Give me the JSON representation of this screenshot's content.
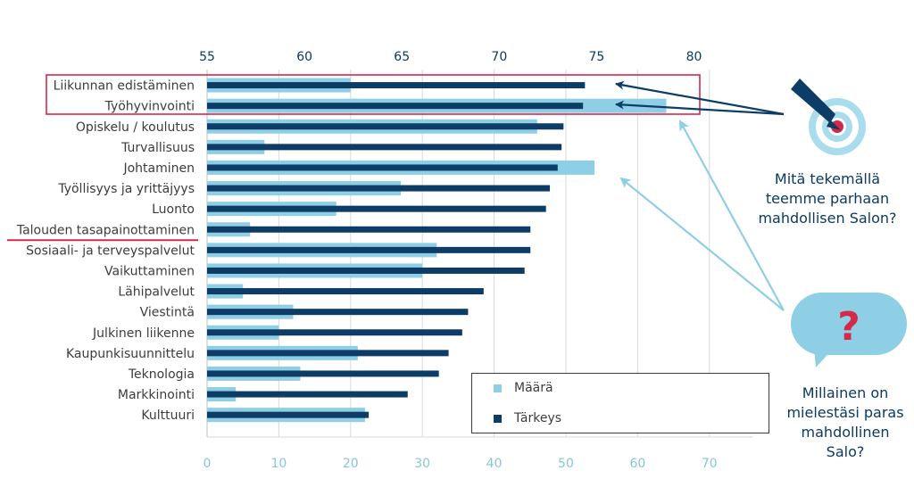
{
  "colors": {
    "count": "#8ecfe5",
    "importance": "#0d3d66",
    "highlight": "#d6284b",
    "arrow_dark": "#0d3d66",
    "arrow_light": "#8ecfe5",
    "grid": "#d9d9d9",
    "top_axis_text": "#0b3a63",
    "bottom_axis_text": "#86c6dc",
    "category_text": "#3c3c3c"
  },
  "side_texts": {
    "target_caption": [
      "Mitä tekemällä",
      "teemme parhaan",
      "mahdollisen Salon?"
    ],
    "question_caption": [
      "Millainen on",
      "mielestäsi paras",
      "mahdollinen",
      "Salo?"
    ],
    "question_mark": "?"
  },
  "icons": {
    "target": "target-icon",
    "speech_bubble": "speech-bubble-icon"
  },
  "chart_data": {
    "type": "bar",
    "orientation": "horizontal",
    "categories": [
      "Liikunnan edistäminen",
      "Työhyvinvointi",
      "Opiskelu / koulutus",
      "Turvallisuus",
      "Johtaminen",
      "Työllisyys ja yrittäjyys",
      "Luonto",
      "Talouden tasapainottaminen",
      "Sosiaali- ja terveyspalvelut",
      "Vaikuttaminen",
      "Lähipalvelut",
      "Viestintä",
      "Julkinen liikenne",
      "Kaupunkisuunnittelu",
      "Teknologia",
      "Markkinointi",
      "Kulttuuri"
    ],
    "series": [
      {
        "name": "Määrä",
        "axis": "bottom",
        "values": [
          20,
          64,
          46,
          8,
          54,
          27,
          18,
          6,
          32,
          30,
          5,
          12,
          10,
          21,
          13,
          4,
          22
        ]
      },
      {
        "name": "Tärkeys",
        "axis": "top",
        "values": [
          74.4,
          74.3,
          73.3,
          73.2,
          73.0,
          72.6,
          72.4,
          71.6,
          71.6,
          71.3,
          69.2,
          68.4,
          68.1,
          67.4,
          66.9,
          65.3,
          63.3
        ]
      }
    ],
    "top_axis": {
      "ticks": [
        "55",
        "60",
        "65",
        "70",
        "75",
        "80"
      ],
      "range": [
        55,
        83
      ]
    },
    "bottom_axis": {
      "ticks": [
        "0",
        "10",
        "20",
        "30",
        "40",
        "50",
        "60",
        "70"
      ],
      "range": [
        0,
        76
      ]
    },
    "highlighted_categories": [
      "Liikunnan edistäminen",
      "Työhyvinvointi"
    ],
    "underlined_category": "Talouden tasapainottaminen",
    "legend": {
      "position": "bottom-right",
      "entries": [
        "Määrä",
        "Tärkeys"
      ]
    },
    "grid": true,
    "title": "",
    "xlabel": "",
    "ylabel": ""
  }
}
